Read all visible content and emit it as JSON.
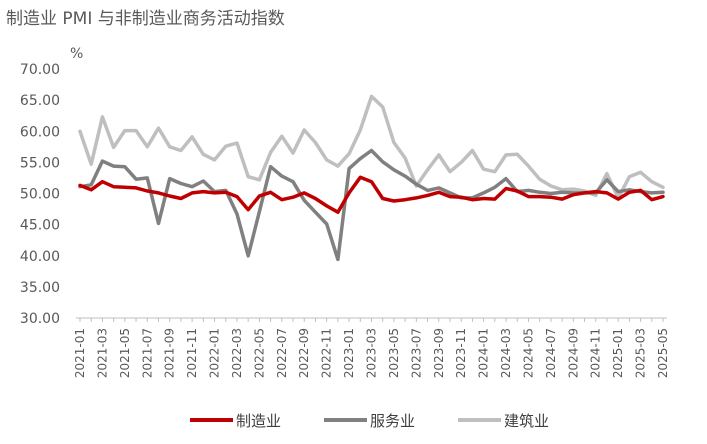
{
  "chart_data": {
    "type": "line",
    "title": "制造业 PMI 与非制造业商务活动指数",
    "ylabel": "%",
    "xlabel": "",
    "ylim": [
      30,
      70
    ],
    "yticks": [
      "30.00",
      "35.00",
      "40.00",
      "45.00",
      "50.00",
      "55.00",
      "60.00",
      "65.00",
      "70.00"
    ],
    "legend_position": "bottom",
    "grid": false,
    "x": [
      "2021-01",
      "2021-02",
      "2021-03",
      "2021-04",
      "2021-05",
      "2021-06",
      "2021-07",
      "2021-08",
      "2021-09",
      "2021-10",
      "2021-11",
      "2021-12",
      "2022-01",
      "2022-02",
      "2022-03",
      "2022-04",
      "2022-05",
      "2022-06",
      "2022-07",
      "2022-08",
      "2022-09",
      "2022-10",
      "2022-11",
      "2022-12",
      "2023-01",
      "2023-02",
      "2023-03",
      "2023-04",
      "2023-05",
      "2023-06",
      "2023-07",
      "2023-08",
      "2023-09",
      "2023-10",
      "2023-11",
      "2023-12",
      "2024-01",
      "2024-02",
      "2024-03",
      "2024-04",
      "2024-05",
      "2024-06",
      "2024-07",
      "2024-08",
      "2024-09",
      "2024-10",
      "2024-11",
      "2024-12",
      "2025-01",
      "2025-02",
      "2025-03",
      "2025-04",
      "2025-05"
    ],
    "xtick_labels": [
      "2021-01",
      "2021-03",
      "2021-05",
      "2021-07",
      "2021-09",
      "2021-11",
      "2022-01",
      "2022-03",
      "2022-05",
      "2022-07",
      "2022-09",
      "2022-11",
      "2023-01",
      "2023-03",
      "2023-05",
      "2023-07",
      "2023-09",
      "2023-11",
      "2024-01",
      "2024-03",
      "2024-05",
      "2024-07",
      "2024-09",
      "2024-11",
      "2025-01",
      "2025-03",
      "2025-05"
    ],
    "series": [
      {
        "name": "制造业",
        "color": "#C00000",
        "values": [
          51.3,
          50.6,
          51.9,
          51.1,
          51.0,
          50.9,
          50.4,
          50.1,
          49.6,
          49.2,
          50.1,
          50.3,
          50.1,
          50.2,
          49.5,
          47.4,
          49.6,
          50.2,
          49.0,
          49.4,
          50.1,
          49.2,
          48.0,
          47.0,
          50.1,
          52.6,
          51.9,
          49.2,
          48.8,
          49.0,
          49.3,
          49.7,
          50.2,
          49.5,
          49.4,
          49.0,
          49.2,
          49.1,
          50.8,
          50.4,
          49.5,
          49.5,
          49.4,
          49.1,
          49.8,
          50.1,
          50.3,
          50.1,
          49.1,
          50.2,
          50.5,
          49.0,
          49.5
        ]
      },
      {
        "name": "服务业",
        "color": "#808080",
        "values": [
          51.1,
          51.4,
          55.2,
          54.4,
          54.3,
          52.3,
          52.5,
          45.2,
          52.4,
          51.6,
          51.1,
          52.0,
          50.3,
          50.5,
          46.7,
          40.0,
          47.1,
          54.3,
          52.8,
          51.9,
          48.9,
          47.0,
          45.1,
          39.4,
          54.0,
          55.6,
          56.9,
          55.1,
          53.8,
          52.8,
          51.5,
          50.5,
          50.9,
          50.1,
          49.3,
          49.3,
          50.1,
          51.0,
          52.4,
          50.3,
          50.5,
          50.2,
          50.0,
          50.2,
          50.1,
          50.1,
          50.1,
          52.2,
          50.3,
          50.6,
          50.3,
          50.1,
          50.2
        ]
      },
      {
        "name": "建筑业",
        "color": "#BFBFBF",
        "values": [
          60.0,
          54.7,
          62.3,
          57.4,
          60.1,
          60.1,
          57.5,
          60.5,
          57.5,
          56.9,
          59.1,
          56.3,
          55.4,
          57.6,
          58.1,
          52.7,
          52.2,
          56.6,
          59.2,
          56.5,
          60.2,
          58.2,
          55.4,
          54.4,
          56.4,
          60.2,
          65.6,
          63.9,
          58.2,
          55.7,
          51.2,
          53.8,
          56.2,
          53.5,
          55.0,
          56.9,
          53.9,
          53.5,
          56.2,
          56.3,
          54.4,
          52.3,
          51.2,
          50.6,
          50.7,
          50.4,
          49.7,
          53.2,
          49.3,
          52.7,
          53.4,
          51.9,
          51.0
        ]
      }
    ]
  }
}
